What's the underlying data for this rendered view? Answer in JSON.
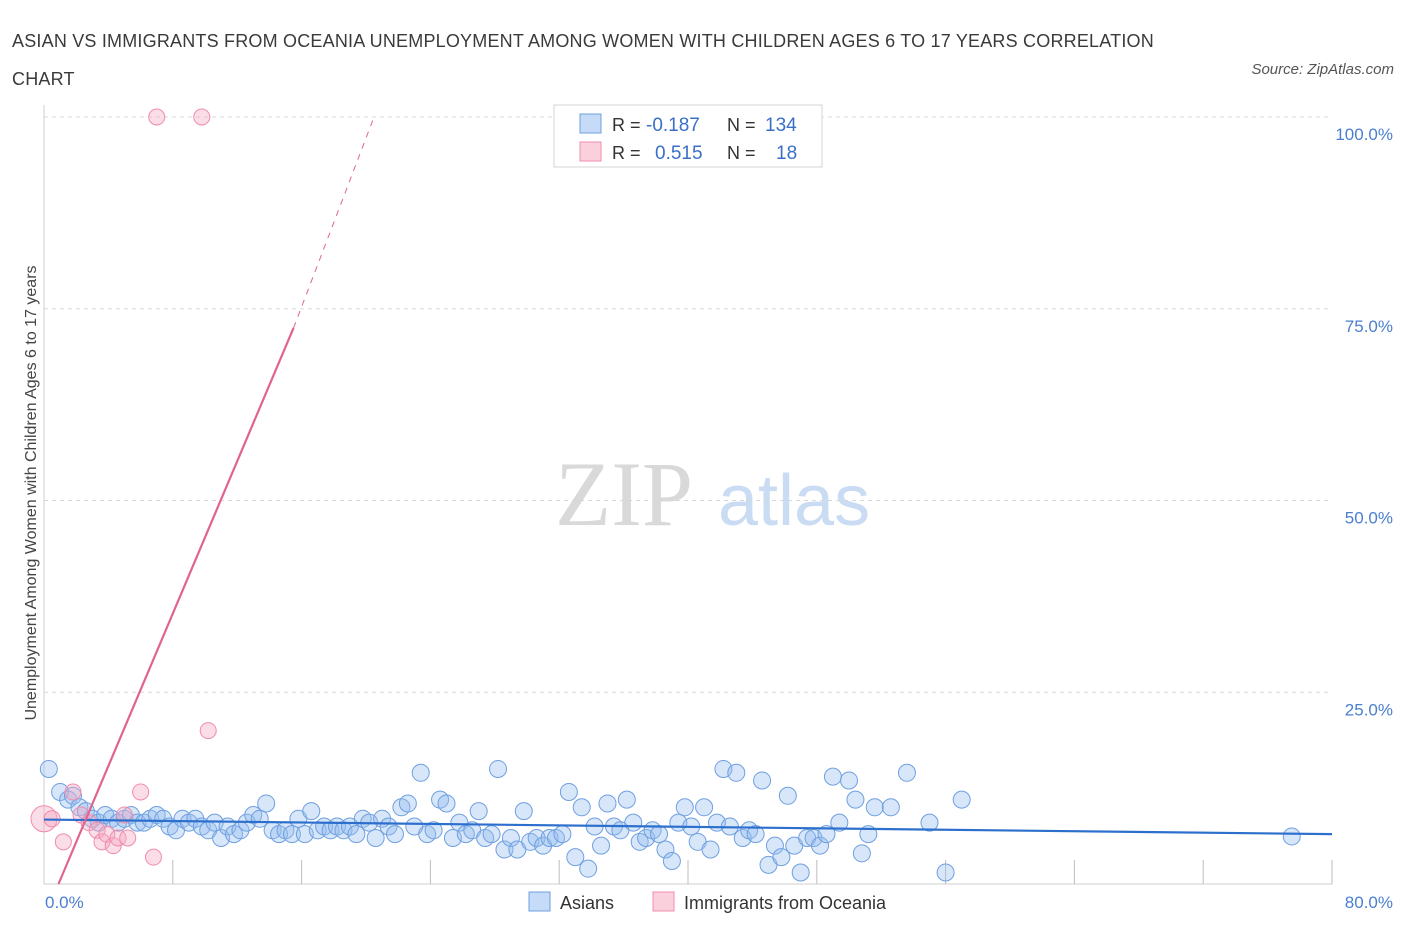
{
  "title": "ASIAN VS IMMIGRANTS FROM OCEANIA UNEMPLOYMENT AMONG WOMEN WITH CHILDREN AGES 6 TO 17 YEARS CORRELATION CHART",
  "source": "Source: ZipAtlas.com",
  "watermark": {
    "zip": "ZIP",
    "atlas": "atlas"
  },
  "colors": {
    "asian": "#6fa0e0",
    "asian_line": "#2d6fcc",
    "oceania": "#f08cae",
    "oceania_line": "#e0648e",
    "tick": "#4a7fcf",
    "grid": "#d8d8d8"
  },
  "legend_top": {
    "rows": [
      {
        "r_label": "R =",
        "r_value": "-0.187",
        "n_label": "N =",
        "n_value": "134"
      },
      {
        "r_label": "R =",
        "r_value": "0.515",
        "n_label": "N =",
        "n_value": "18"
      }
    ]
  },
  "legend_bottom": [
    "Asians",
    "Immigrants from Oceania"
  ],
  "chart_data": {
    "type": "scatter",
    "title": "ASIAN VS IMMIGRANTS FROM OCEANIA UNEMPLOYMENT AMONG WOMEN WITH CHILDREN AGES 6 TO 17 YEARS CORRELATION CHART",
    "xlabel": "",
    "ylabel": "Unemployment Among Women with Children Ages 6 to 17 years",
    "xlim": [
      0,
      80
    ],
    "ylim": [
      0,
      100
    ],
    "x_tick_labels": [
      "0.0%",
      "80.0%"
    ],
    "y_tick_labels": [
      "100.0%",
      "75.0%",
      "50.0%",
      "25.0%"
    ],
    "y_ticks": [
      100,
      75,
      50,
      25
    ],
    "series": [
      {
        "name": "Asians",
        "r": -0.187,
        "n": 134,
        "trend": {
          "x": [
            0,
            80
          ],
          "y": [
            8.4,
            6.5
          ]
        },
        "points": [
          [
            0.3,
            15.0
          ],
          [
            1.0,
            12.0
          ],
          [
            1.5,
            11.0
          ],
          [
            1.8,
            11.5
          ],
          [
            2.2,
            10.0
          ],
          [
            2.6,
            9.5
          ],
          [
            3.0,
            8.5
          ],
          [
            3.4,
            8.0
          ],
          [
            3.8,
            9.0
          ],
          [
            4.2,
            8.5
          ],
          [
            4.6,
            8.0
          ],
          [
            5.0,
            8.5
          ],
          [
            5.4,
            9.0
          ],
          [
            5.8,
            8.0
          ],
          [
            6.2,
            8.0
          ],
          [
            6.6,
            8.5
          ],
          [
            7.0,
            9.0
          ],
          [
            7.4,
            8.5
          ],
          [
            7.8,
            7.5
          ],
          [
            8.2,
            7.0
          ],
          [
            8.6,
            8.5
          ],
          [
            9.0,
            8.0
          ],
          [
            9.4,
            8.5
          ],
          [
            9.8,
            7.5
          ],
          [
            10.2,
            7.0
          ],
          [
            10.6,
            8.0
          ],
          [
            11.0,
            6.0
          ],
          [
            11.4,
            7.5
          ],
          [
            11.8,
            6.5
          ],
          [
            12.2,
            7.0
          ],
          [
            12.6,
            8.0
          ],
          [
            13.0,
            9.0
          ],
          [
            13.4,
            8.5
          ],
          [
            13.8,
            10.5
          ],
          [
            14.2,
            7.0
          ],
          [
            14.6,
            6.5
          ],
          [
            15.0,
            7.0
          ],
          [
            15.4,
            6.5
          ],
          [
            15.8,
            8.5
          ],
          [
            16.2,
            6.5
          ],
          [
            16.6,
            9.5
          ],
          [
            17.0,
            7.0
          ],
          [
            17.4,
            7.5
          ],
          [
            17.8,
            7.0
          ],
          [
            18.2,
            7.5
          ],
          [
            18.6,
            7.0
          ],
          [
            19.0,
            7.5
          ],
          [
            19.4,
            6.5
          ],
          [
            19.8,
            8.5
          ],
          [
            20.2,
            8.0
          ],
          [
            20.6,
            6.0
          ],
          [
            21.0,
            8.5
          ],
          [
            21.4,
            7.5
          ],
          [
            21.8,
            6.5
          ],
          [
            22.2,
            10.0
          ],
          [
            22.6,
            10.5
          ],
          [
            23.0,
            7.5
          ],
          [
            23.4,
            14.5
          ],
          [
            23.8,
            6.5
          ],
          [
            24.2,
            7.0
          ],
          [
            24.6,
            11.0
          ],
          [
            25.0,
            10.5
          ],
          [
            25.4,
            6.0
          ],
          [
            25.8,
            8.0
          ],
          [
            26.2,
            6.5
          ],
          [
            26.6,
            7.0
          ],
          [
            27.0,
            9.5
          ],
          [
            27.4,
            6.0
          ],
          [
            27.8,
            6.5
          ],
          [
            28.2,
            15.0
          ],
          [
            28.6,
            4.5
          ],
          [
            29.0,
            6.0
          ],
          [
            29.4,
            4.5
          ],
          [
            29.8,
            9.5
          ],
          [
            30.2,
            5.5
          ],
          [
            30.6,
            6.0
          ],
          [
            31.0,
            5.0
          ],
          [
            31.4,
            6.0
          ],
          [
            31.8,
            6.0
          ],
          [
            32.2,
            6.5
          ],
          [
            32.6,
            12.0
          ],
          [
            33.0,
            3.5
          ],
          [
            33.4,
            10.0
          ],
          [
            33.8,
            2.0
          ],
          [
            34.2,
            7.5
          ],
          [
            34.6,
            5.0
          ],
          [
            35.0,
            10.5
          ],
          [
            35.4,
            7.5
          ],
          [
            35.8,
            7.0
          ],
          [
            36.2,
            11.0
          ],
          [
            36.6,
            8.0
          ],
          [
            37.0,
            5.5
          ],
          [
            37.4,
            6.0
          ],
          [
            37.8,
            7.0
          ],
          [
            38.2,
            6.5
          ],
          [
            38.6,
            4.5
          ],
          [
            39.0,
            3.0
          ],
          [
            39.4,
            8.0
          ],
          [
            39.8,
            10.0
          ],
          [
            40.2,
            7.5
          ],
          [
            40.6,
            5.5
          ],
          [
            41.0,
            10.0
          ],
          [
            41.4,
            4.5
          ],
          [
            41.8,
            8.0
          ],
          [
            42.2,
            15.0
          ],
          [
            42.6,
            7.5
          ],
          [
            43.0,
            14.5
          ],
          [
            43.4,
            6.0
          ],
          [
            43.8,
            7.0
          ],
          [
            44.2,
            6.5
          ],
          [
            44.6,
            13.5
          ],
          [
            45.0,
            2.5
          ],
          [
            45.4,
            5.0
          ],
          [
            45.8,
            3.5
          ],
          [
            46.2,
            11.5
          ],
          [
            46.6,
            5.0
          ],
          [
            47.0,
            1.5
          ],
          [
            47.4,
            6.0
          ],
          [
            47.8,
            6.0
          ],
          [
            48.2,
            5.0
          ],
          [
            48.6,
            6.5
          ],
          [
            49.0,
            14.0
          ],
          [
            49.4,
            8.0
          ],
          [
            50.0,
            13.5
          ],
          [
            50.4,
            11.0
          ],
          [
            50.8,
            4.0
          ],
          [
            51.2,
            6.5
          ],
          [
            51.6,
            10.0
          ],
          [
            52.6,
            10.0
          ],
          [
            53.6,
            14.5
          ],
          [
            55.0,
            8.0
          ],
          [
            56.0,
            1.5
          ],
          [
            57.0,
            11.0
          ],
          [
            77.5,
            6.2
          ]
        ]
      },
      {
        "name": "Immigrants from Oceania",
        "r": 0.515,
        "n": 18,
        "trend": {
          "x": [
            0.9,
            15.5
          ],
          "y": [
            0,
            72.5
          ]
        },
        "trend_dashed": {
          "x": [
            15.5,
            20.5
          ],
          "y": [
            72.5,
            100
          ]
        },
        "points": [
          [
            0.0,
            8.5
          ],
          [
            0.5,
            8.5
          ],
          [
            1.2,
            5.5
          ],
          [
            1.8,
            12.0
          ],
          [
            2.3,
            9.0
          ],
          [
            2.8,
            8.0
          ],
          [
            3.3,
            7.0
          ],
          [
            3.6,
            5.5
          ],
          [
            3.9,
            6.5
          ],
          [
            4.3,
            5.0
          ],
          [
            4.6,
            6.0
          ],
          [
            5.0,
            9.0
          ],
          [
            6.0,
            12.0
          ],
          [
            6.8,
            3.5
          ],
          [
            7.0,
            100.0
          ],
          [
            9.8,
            100.0
          ],
          [
            10.2,
            20.0
          ],
          [
            5.2,
            6.0
          ]
        ]
      }
    ]
  }
}
